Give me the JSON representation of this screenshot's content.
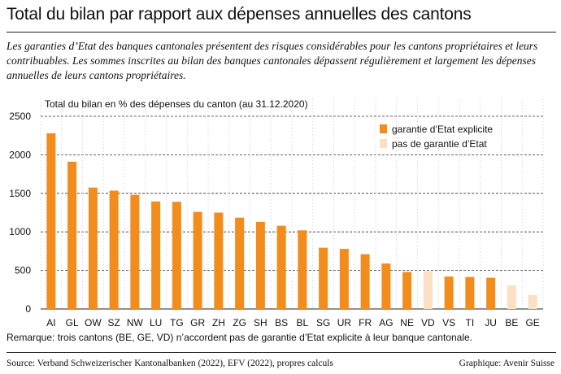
{
  "header": {
    "title": "Total du bilan par rapport aux dépenses annuelles des cantons",
    "lede": "Les garanties d’Etat des banques cantonales présentent des risques considérables pour les cantons propriétaires et leurs contribuables. Les sommes inscrites au bilan des banques cantonales dépassent régulièrement et largement les dépenses annuelles de leurs cantons propriétaires."
  },
  "chart_data": {
    "type": "bar",
    "title": "Total du bilan en % des dépenses du canton (au 31.12.2020)",
    "xlabel": "",
    "ylabel": "",
    "ylim": [
      0,
      2500
    ],
    "yticks": [
      0,
      500,
      1000,
      1500,
      2000,
      2500
    ],
    "grid": "horizontal dashed",
    "legend_position": "top-right",
    "categories": [
      "AI",
      "GL",
      "OW",
      "SZ",
      "NW",
      "LU",
      "TG",
      "GR",
      "ZH",
      "ZG",
      "SH",
      "BS",
      "BL",
      "SG",
      "UR",
      "FR",
      "AG",
      "NE",
      "VD",
      "VS",
      "TI",
      "JU",
      "BE",
      "GE"
    ],
    "values": [
      2280,
      1910,
      1575,
      1535,
      1480,
      1395,
      1390,
      1260,
      1250,
      1185,
      1130,
      1080,
      1020,
      795,
      780,
      710,
      590,
      480,
      490,
      420,
      415,
      405,
      305,
      180
    ],
    "guarantee": [
      true,
      true,
      true,
      true,
      true,
      true,
      true,
      true,
      true,
      true,
      true,
      true,
      true,
      true,
      true,
      true,
      true,
      true,
      false,
      true,
      true,
      true,
      false,
      false
    ],
    "series": [
      {
        "name": "garantie d’Etat explicite",
        "color": "#f28c1c"
      },
      {
        "name": "pas de garantie d’Etat",
        "color": "#fbe0c3"
      }
    ]
  },
  "footer": {
    "remark": "Remarque: trois cantons (BE, GE, VD) n’accordent pas de garantie d’Etat explicite à leur banque cantonale.",
    "source": "Source: Verband Schweizerischer Kantonalbanken (2022), EFV (2022), propres calculs",
    "credit": "Graphique: Avenir Suisse"
  }
}
